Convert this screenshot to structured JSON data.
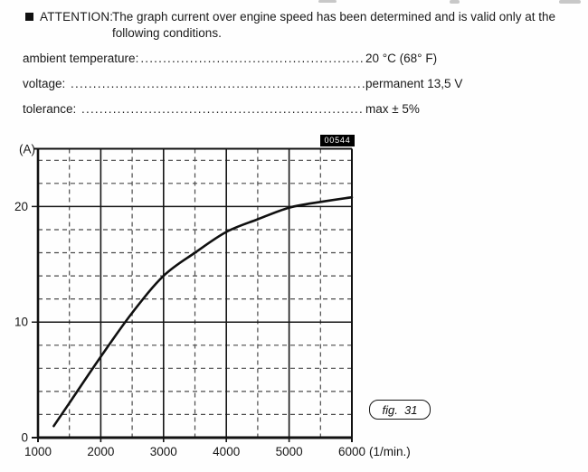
{
  "attention": {
    "label": "ATTENTION:",
    "text": "The graph current over engine speed has been determined and is valid only at the following conditions."
  },
  "conditions": [
    {
      "label": "ambient temperature:",
      "value": "20 °C (68° F)"
    },
    {
      "label": "voltage: ",
      "value": "permanent 13,5 V"
    },
    {
      "label": "tolerance: ",
      "value": "max ± 5%"
    }
  ],
  "dot_leader": "..............................................................................................................",
  "figure": {
    "image_number": "00544",
    "caption": "fig.  31"
  },
  "chart_data": {
    "type": "line",
    "title": "",
    "ylabel": "(A)",
    "xlabel": "(1/min.)",
    "xlim": [
      1000,
      6000
    ],
    "ylim": [
      0,
      25
    ],
    "x_ticks": [
      1000,
      2000,
      3000,
      4000,
      5000,
      6000
    ],
    "y_ticks": [
      0,
      10,
      20
    ],
    "x_minor_step": 500,
    "y_minor_step": 2,
    "grid": {
      "major": "solid",
      "minor": "dashed"
    },
    "legend": "none",
    "series": [
      {
        "name": "current-over-engine-speed",
        "points": [
          [
            1250,
            1.0
          ],
          [
            1500,
            3.0
          ],
          [
            2000,
            7.0
          ],
          [
            2500,
            10.8
          ],
          [
            3000,
            14.0
          ],
          [
            3500,
            16.0
          ],
          [
            4000,
            17.8
          ],
          [
            4500,
            18.9
          ],
          [
            5000,
            19.9
          ],
          [
            5500,
            20.4
          ],
          [
            6000,
            20.8
          ]
        ]
      }
    ]
  }
}
